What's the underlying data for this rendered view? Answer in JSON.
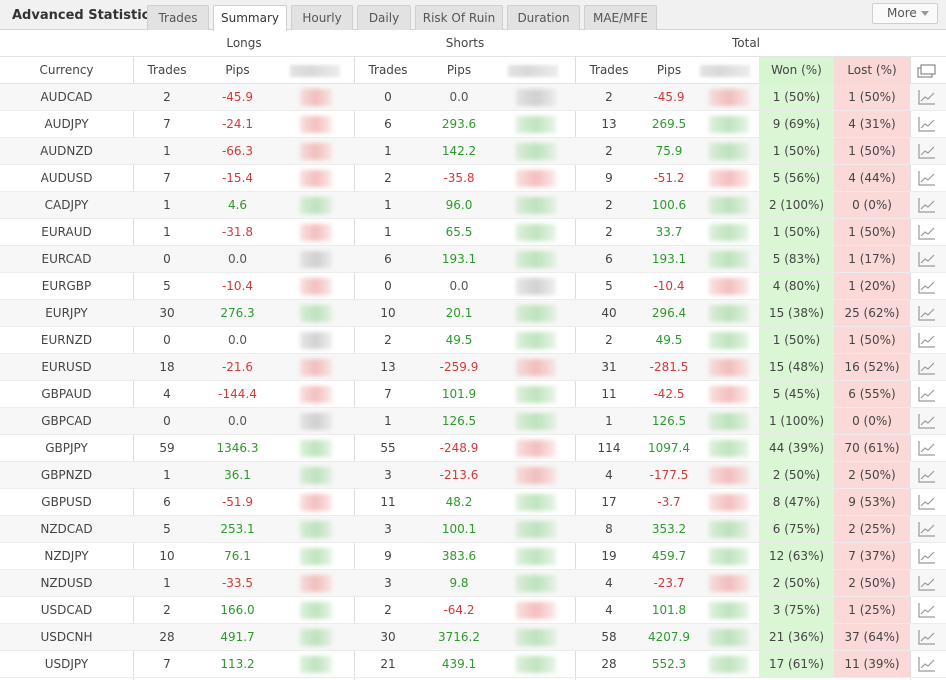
{
  "header": {
    "title": "Advanced Statistics",
    "tabs": [
      {
        "label": "Trades",
        "active": false
      },
      {
        "label": "Summary",
        "active": true
      },
      {
        "label": "Hourly",
        "active": false
      },
      {
        "label": "Daily",
        "active": false
      },
      {
        "label": "Risk Of Ruin",
        "active": false
      },
      {
        "label": "Duration",
        "active": false
      },
      {
        "label": "MAE/MFE",
        "active": false
      }
    ],
    "more_label": "More"
  },
  "groups": {
    "longs": "Longs",
    "shorts": "Shorts",
    "total": "Total"
  },
  "columns": {
    "currency": "Currency",
    "trades": "Trades",
    "pips": "Pips",
    "won": "Won (%)",
    "lost": "Lost (%)"
  },
  "icons": {
    "header_icon": "copy-stack-icon",
    "row_icon": "line-chart-icon"
  },
  "colors": {
    "positive": "#2c9a2c",
    "negative": "#d23a3a",
    "won_bg": "#daf6d4",
    "lost_bg": "#fbd9d9"
  },
  "rows": [
    {
      "currency": "AUDCAD",
      "l_trades": "2",
      "l_pips": "-45.9",
      "s_trades": "0",
      "s_pips": "0.0",
      "t_trades": "2",
      "t_pips": "-45.9",
      "won": "1 (50%)",
      "lost": "1 (50%)"
    },
    {
      "currency": "AUDJPY",
      "l_trades": "7",
      "l_pips": "-24.1",
      "s_trades": "6",
      "s_pips": "293.6",
      "t_trades": "13",
      "t_pips": "269.5",
      "won": "9 (69%)",
      "lost": "4 (31%)"
    },
    {
      "currency": "AUDNZD",
      "l_trades": "1",
      "l_pips": "-66.3",
      "s_trades": "1",
      "s_pips": "142.2",
      "t_trades": "2",
      "t_pips": "75.9",
      "won": "1 (50%)",
      "lost": "1 (50%)"
    },
    {
      "currency": "AUDUSD",
      "l_trades": "7",
      "l_pips": "-15.4",
      "s_trades": "2",
      "s_pips": "-35.8",
      "t_trades": "9",
      "t_pips": "-51.2",
      "won": "5 (56%)",
      "lost": "4 (44%)"
    },
    {
      "currency": "CADJPY",
      "l_trades": "1",
      "l_pips": "4.6",
      "s_trades": "1",
      "s_pips": "96.0",
      "t_trades": "2",
      "t_pips": "100.6",
      "won": "2 (100%)",
      "lost": "0 (0%)"
    },
    {
      "currency": "EURAUD",
      "l_trades": "1",
      "l_pips": "-31.8",
      "s_trades": "1",
      "s_pips": "65.5",
      "t_trades": "2",
      "t_pips": "33.7",
      "won": "1 (50%)",
      "lost": "1 (50%)"
    },
    {
      "currency": "EURCAD",
      "l_trades": "0",
      "l_pips": "0.0",
      "s_trades": "6",
      "s_pips": "193.1",
      "t_trades": "6",
      "t_pips": "193.1",
      "won": "5 (83%)",
      "lost": "1 (17%)"
    },
    {
      "currency": "EURGBP",
      "l_trades": "5",
      "l_pips": "-10.4",
      "s_trades": "0",
      "s_pips": "0.0",
      "t_trades": "5",
      "t_pips": "-10.4",
      "won": "4 (80%)",
      "lost": "1 (20%)"
    },
    {
      "currency": "EURJPY",
      "l_trades": "30",
      "l_pips": "276.3",
      "s_trades": "10",
      "s_pips": "20.1",
      "t_trades": "40",
      "t_pips": "296.4",
      "won": "15 (38%)",
      "lost": "25 (62%)"
    },
    {
      "currency": "EURNZD",
      "l_trades": "0",
      "l_pips": "0.0",
      "s_trades": "2",
      "s_pips": "49.5",
      "t_trades": "2",
      "t_pips": "49.5",
      "won": "1 (50%)",
      "lost": "1 (50%)"
    },
    {
      "currency": "EURUSD",
      "l_trades": "18",
      "l_pips": "-21.6",
      "s_trades": "13",
      "s_pips": "-259.9",
      "t_trades": "31",
      "t_pips": "-281.5",
      "won": "15 (48%)",
      "lost": "16 (52%)"
    },
    {
      "currency": "GBPAUD",
      "l_trades": "4",
      "l_pips": "-144.4",
      "s_trades": "7",
      "s_pips": "101.9",
      "t_trades": "11",
      "t_pips": "-42.5",
      "won": "5 (45%)",
      "lost": "6 (55%)"
    },
    {
      "currency": "GBPCAD",
      "l_trades": "0",
      "l_pips": "0.0",
      "s_trades": "1",
      "s_pips": "126.5",
      "t_trades": "1",
      "t_pips": "126.5",
      "won": "1 (100%)",
      "lost": "0 (0%)"
    },
    {
      "currency": "GBPJPY",
      "l_trades": "59",
      "l_pips": "1346.3",
      "s_trades": "55",
      "s_pips": "-248.9",
      "t_trades": "114",
      "t_pips": "1097.4",
      "won": "44 (39%)",
      "lost": "70 (61%)"
    },
    {
      "currency": "GBPNZD",
      "l_trades": "1",
      "l_pips": "36.1",
      "s_trades": "3",
      "s_pips": "-213.6",
      "t_trades": "4",
      "t_pips": "-177.5",
      "won": "2 (50%)",
      "lost": "2 (50%)"
    },
    {
      "currency": "GBPUSD",
      "l_trades": "6",
      "l_pips": "-51.9",
      "s_trades": "11",
      "s_pips": "48.2",
      "t_trades": "17",
      "t_pips": "-3.7",
      "won": "8 (47%)",
      "lost": "9 (53%)"
    },
    {
      "currency": "NZDCAD",
      "l_trades": "5",
      "l_pips": "253.1",
      "s_trades": "3",
      "s_pips": "100.1",
      "t_trades": "8",
      "t_pips": "353.2",
      "won": "6 (75%)",
      "lost": "2 (25%)"
    },
    {
      "currency": "NZDJPY",
      "l_trades": "10",
      "l_pips": "76.1",
      "s_trades": "9",
      "s_pips": "383.6",
      "t_trades": "19",
      "t_pips": "459.7",
      "won": "12 (63%)",
      "lost": "7 (37%)"
    },
    {
      "currency": "NZDUSD",
      "l_trades": "1",
      "l_pips": "-33.5",
      "s_trades": "3",
      "s_pips": "9.8",
      "t_trades": "4",
      "t_pips": "-23.7",
      "won": "2 (50%)",
      "lost": "2 (50%)"
    },
    {
      "currency": "USDCAD",
      "l_trades": "2",
      "l_pips": "166.0",
      "s_trades": "2",
      "s_pips": "-64.2",
      "t_trades": "4",
      "t_pips": "101.8",
      "won": "3 (75%)",
      "lost": "1 (25%)"
    },
    {
      "currency": "USDCNH",
      "l_trades": "28",
      "l_pips": "491.7",
      "s_trades": "30",
      "s_pips": "3716.2",
      "t_trades": "58",
      "t_pips": "4207.9",
      "won": "21 (36%)",
      "lost": "37 (64%)"
    },
    {
      "currency": "USDJPY",
      "l_trades": "7",
      "l_pips": "113.2",
      "s_trades": "21",
      "s_pips": "439.1",
      "t_trades": "28",
      "t_pips": "552.3",
      "won": "17 (61%)",
      "lost": "11 (39%)"
    }
  ]
}
